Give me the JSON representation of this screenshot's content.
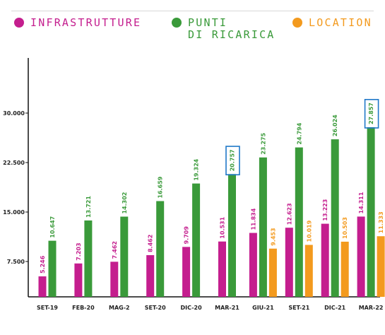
{
  "legend": [
    {
      "label": "INFRASTRUTTURE",
      "color": "#c41e8e"
    },
    {
      "label": "PUNTI\nDI RICARICA",
      "color": "#3a9a3a"
    },
    {
      "label": "LOCATION",
      "color": "#f39a1e"
    }
  ],
  "chart_data": {
    "type": "bar",
    "categories": [
      "SET-19",
      "FEB-20",
      "MAG-2",
      "SET-20",
      "DIC-20",
      "MAR-21",
      "GIU-21",
      "SET-21",
      "DIC-21",
      "MAR-22"
    ],
    "series": [
      {
        "name": "INFRASTRUTTURE",
        "color": "#c41e8e",
        "values": [
          5246,
          7203,
          7462,
          8462,
          9709,
          10531,
          11834,
          12623,
          13223,
          14311
        ],
        "labels": [
          "5.246",
          "7.203",
          "7.462",
          "8.462",
          "9.709",
          "10.531",
          "11.834",
          "12.623",
          "13.223",
          "14.311"
        ]
      },
      {
        "name": "PUNTI DI RICARICA",
        "color": "#3a9a3a",
        "values": [
          10647,
          13721,
          14302,
          16659,
          19324,
          20757,
          23275,
          24794,
          26024,
          27857
        ],
        "labels": [
          "10.647",
          "13.721",
          "14.302",
          "16.659",
          "19.324",
          "20.757",
          "23.275",
          "24.794",
          "26.024",
          "27.857"
        ]
      },
      {
        "name": "LOCATION",
        "color": "#f39a1e",
        "values": [
          null,
          null,
          null,
          null,
          null,
          null,
          9453,
          10019,
          10503,
          11333
        ],
        "labels": [
          "",
          "",
          "",
          "",
          "",
          "",
          "9.453",
          "10.019",
          "10.503",
          "11.333"
        ]
      }
    ],
    "highlighted": [
      {
        "series": 1,
        "category": 5
      },
      {
        "series": 1,
        "category": 9
      }
    ],
    "highlight_color": "#1f78c8",
    "yticks": [
      7500,
      15000,
      22500,
      30000
    ],
    "ytick_labels": [
      "7.500",
      "15.000",
      "22.500",
      "30.000"
    ],
    "ylim": [
      0,
      36500
    ],
    "title": "",
    "xlabel": "",
    "ylabel": ""
  }
}
